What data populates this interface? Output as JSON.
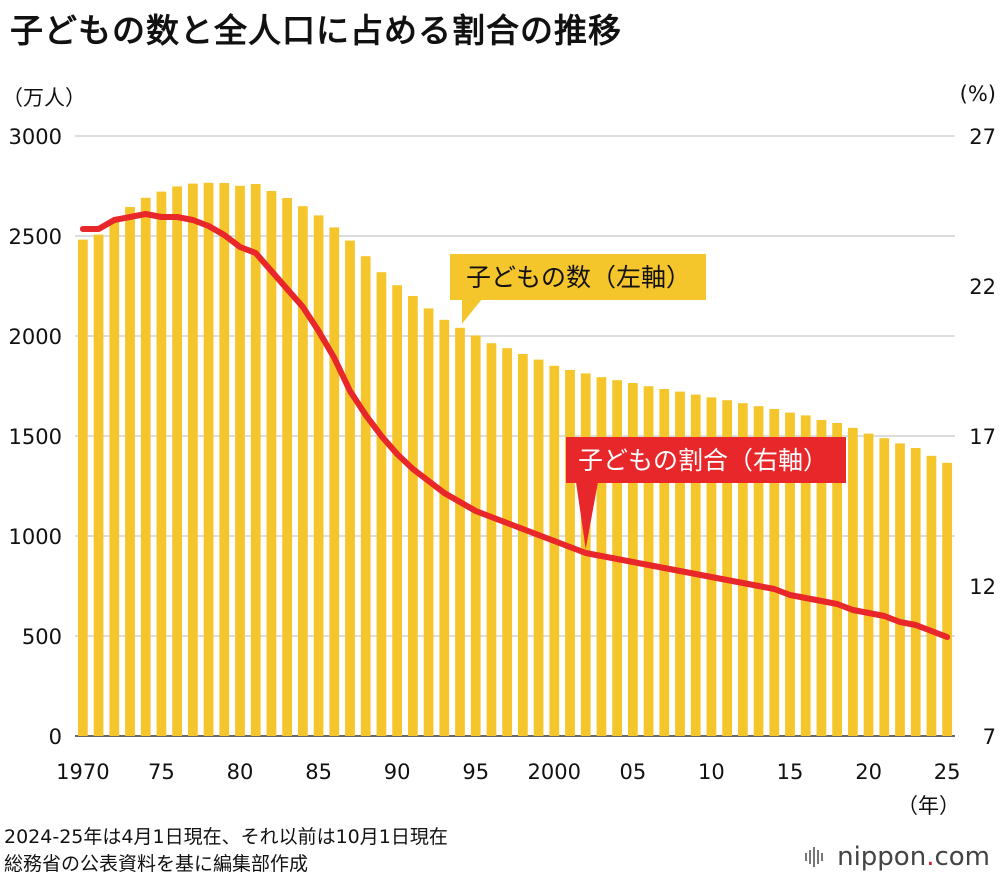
{
  "title": "子どもの数と全人口に占める割合の推移",
  "left_unit": "（万人）",
  "right_unit": "(%)",
  "year_unit": "（年）",
  "notes": [
    "2024-25年は4月1日現在、それ以前は10月1日現在",
    "総務省の公表資料を基に編集部作成"
  ],
  "logo": {
    "text": "nippon",
    "dot": ".",
    "suffix": "com"
  },
  "chart_data": {
    "type": "bar",
    "grid": true,
    "left_axis": {
      "label": "（万人）",
      "ylim": [
        0,
        3000
      ],
      "ticks": [
        0,
        500,
        1000,
        1500,
        2000,
        2500,
        3000
      ]
    },
    "right_axis": {
      "label": "(%)",
      "ylim": [
        7,
        27
      ],
      "ticks": [
        7,
        12,
        17,
        22,
        27
      ]
    },
    "x_tick_labels": [
      {
        "year": 1970,
        "label": "1970"
      },
      {
        "year": 1975,
        "label": "75"
      },
      {
        "year": 1980,
        "label": "80"
      },
      {
        "year": 1985,
        "label": "85"
      },
      {
        "year": 1990,
        "label": "90"
      },
      {
        "year": 1995,
        "label": "95"
      },
      {
        "year": 2000,
        "label": "2000"
      },
      {
        "year": 2005,
        "label": "05"
      },
      {
        "year": 2010,
        "label": "10"
      },
      {
        "year": 2015,
        "label": "15"
      },
      {
        "year": 2020,
        "label": "20"
      },
      {
        "year": 2025,
        "label": "25"
      }
    ],
    "x": [
      1970,
      1971,
      1972,
      1973,
      1974,
      1975,
      1976,
      1977,
      1978,
      1979,
      1980,
      1981,
      1982,
      1983,
      1984,
      1985,
      1986,
      1987,
      1988,
      1989,
      1990,
      1991,
      1992,
      1993,
      1994,
      1995,
      1996,
      1997,
      1998,
      1999,
      2000,
      2001,
      2002,
      2003,
      2004,
      2005,
      2006,
      2007,
      2008,
      2009,
      2010,
      2011,
      2012,
      2013,
      2014,
      2015,
      2016,
      2017,
      2018,
      2019,
      2020,
      2021,
      2022,
      2023,
      2024,
      2025
    ],
    "series": [
      {
        "name": "子どもの数（左軸）",
        "kind": "bar",
        "axis": "left",
        "color": "#f5c52c",
        "values": [
          2482,
          2507,
          2584,
          2645,
          2691,
          2722,
          2748,
          2762,
          2766,
          2765,
          2751,
          2760,
          2725,
          2690,
          2649,
          2603,
          2543,
          2477,
          2399,
          2319,
          2254,
          2200,
          2138,
          2081,
          2041,
          2003,
          1964,
          1939,
          1910,
          1882,
          1851,
          1830,
          1813,
          1794,
          1779,
          1765,
          1749,
          1735,
          1722,
          1707,
          1693,
          1679,
          1664,
          1649,
          1635,
          1617,
          1603,
          1580,
          1565,
          1541,
          1512,
          1489,
          1463,
          1440,
          1401,
          1366
        ]
      },
      {
        "name": "子どもの割合（右軸）",
        "kind": "line",
        "axis": "right",
        "color": "#e8272b",
        "values": [
          23.9,
          23.9,
          24.2,
          24.3,
          24.4,
          24.3,
          24.3,
          24.2,
          24.0,
          23.7,
          23.3,
          23.1,
          22.5,
          21.9,
          21.3,
          20.5,
          19.6,
          18.5,
          17.7,
          17.0,
          16.4,
          15.9,
          15.5,
          15.1,
          14.8,
          14.5,
          14.3,
          14.1,
          13.9,
          13.7,
          13.5,
          13.3,
          13.1,
          13.0,
          12.9,
          12.8,
          12.7,
          12.6,
          12.5,
          12.4,
          12.3,
          12.2,
          12.1,
          12.0,
          11.9,
          11.7,
          11.6,
          11.5,
          11.4,
          11.2,
          11.1,
          11.0,
          10.8,
          10.7,
          10.5,
          10.3
        ]
      }
    ],
    "annotations": [
      {
        "text": "子どもの数（左軸）",
        "series": "bar",
        "color": "#f5c52c",
        "text_color": "#111111"
      },
      {
        "text": "子どもの割合（右軸）",
        "series": "line",
        "color": "#e8272b",
        "text_color": "#ffffff"
      }
    ]
  }
}
